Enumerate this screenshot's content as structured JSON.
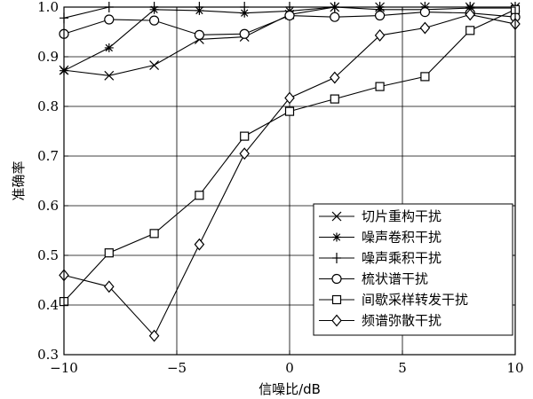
{
  "chart_data": {
    "type": "line",
    "xlabel": "信噪比/dB",
    "ylabel": "准确率",
    "xlim": [
      -10,
      10
    ],
    "ylim": [
      0.3,
      1.0
    ],
    "x_ticks": [
      -10,
      -5,
      0,
      5,
      10
    ],
    "y_ticks": [
      0.3,
      0.4,
      0.5,
      0.6,
      0.7,
      0.8,
      0.9,
      1.0
    ],
    "x_tick_labels": [
      "−10",
      "−5",
      "0",
      "5",
      "10"
    ],
    "y_tick_labels": [
      "0.3",
      "0.4",
      "0.5",
      "0.6",
      "0.7",
      "0.8",
      "0.9",
      "1.0"
    ],
    "grid": true,
    "legend_position": "lower-right",
    "x": [
      -10,
      -8,
      -6,
      -4,
      -2,
      0,
      2,
      4,
      6,
      8,
      10
    ],
    "series": [
      {
        "name": "切片重构干扰",
        "marker": "x",
        "values": [
          0.873,
          0.862,
          0.883,
          0.935,
          0.94,
          0.985,
          1.0,
          1.0,
          1.0,
          1.0,
          1.0
        ]
      },
      {
        "name": "噪声卷积干扰",
        "marker": "asterisk",
        "values": [
          0.872,
          0.918,
          0.995,
          0.993,
          0.988,
          0.992,
          1.0,
          0.995,
          0.995,
          0.998,
          0.998
        ]
      },
      {
        "name": "噪声乘积干扰",
        "marker": "plus",
        "values": [
          0.978,
          1.0,
          1.0,
          1.0,
          1.0,
          1.0,
          1.0,
          1.0,
          1.0,
          1.0,
          1.0
        ]
      },
      {
        "name": "梳状谱干扰",
        "marker": "circle",
        "values": [
          0.946,
          0.975,
          0.973,
          0.944,
          0.946,
          0.983,
          0.98,
          0.983,
          0.99,
          0.988,
          0.98
        ]
      },
      {
        "name": "间歇采样转发干扰",
        "marker": "square",
        "values": [
          0.407,
          0.505,
          0.544,
          0.621,
          0.74,
          0.79,
          0.815,
          0.84,
          0.86,
          0.953,
          0.995
        ]
      },
      {
        "name": "频谱弥散干扰",
        "marker": "diamond",
        "values": [
          0.46,
          0.437,
          0.338,
          0.522,
          0.705,
          0.817,
          0.858,
          0.943,
          0.958,
          0.985,
          0.966
        ]
      }
    ]
  }
}
